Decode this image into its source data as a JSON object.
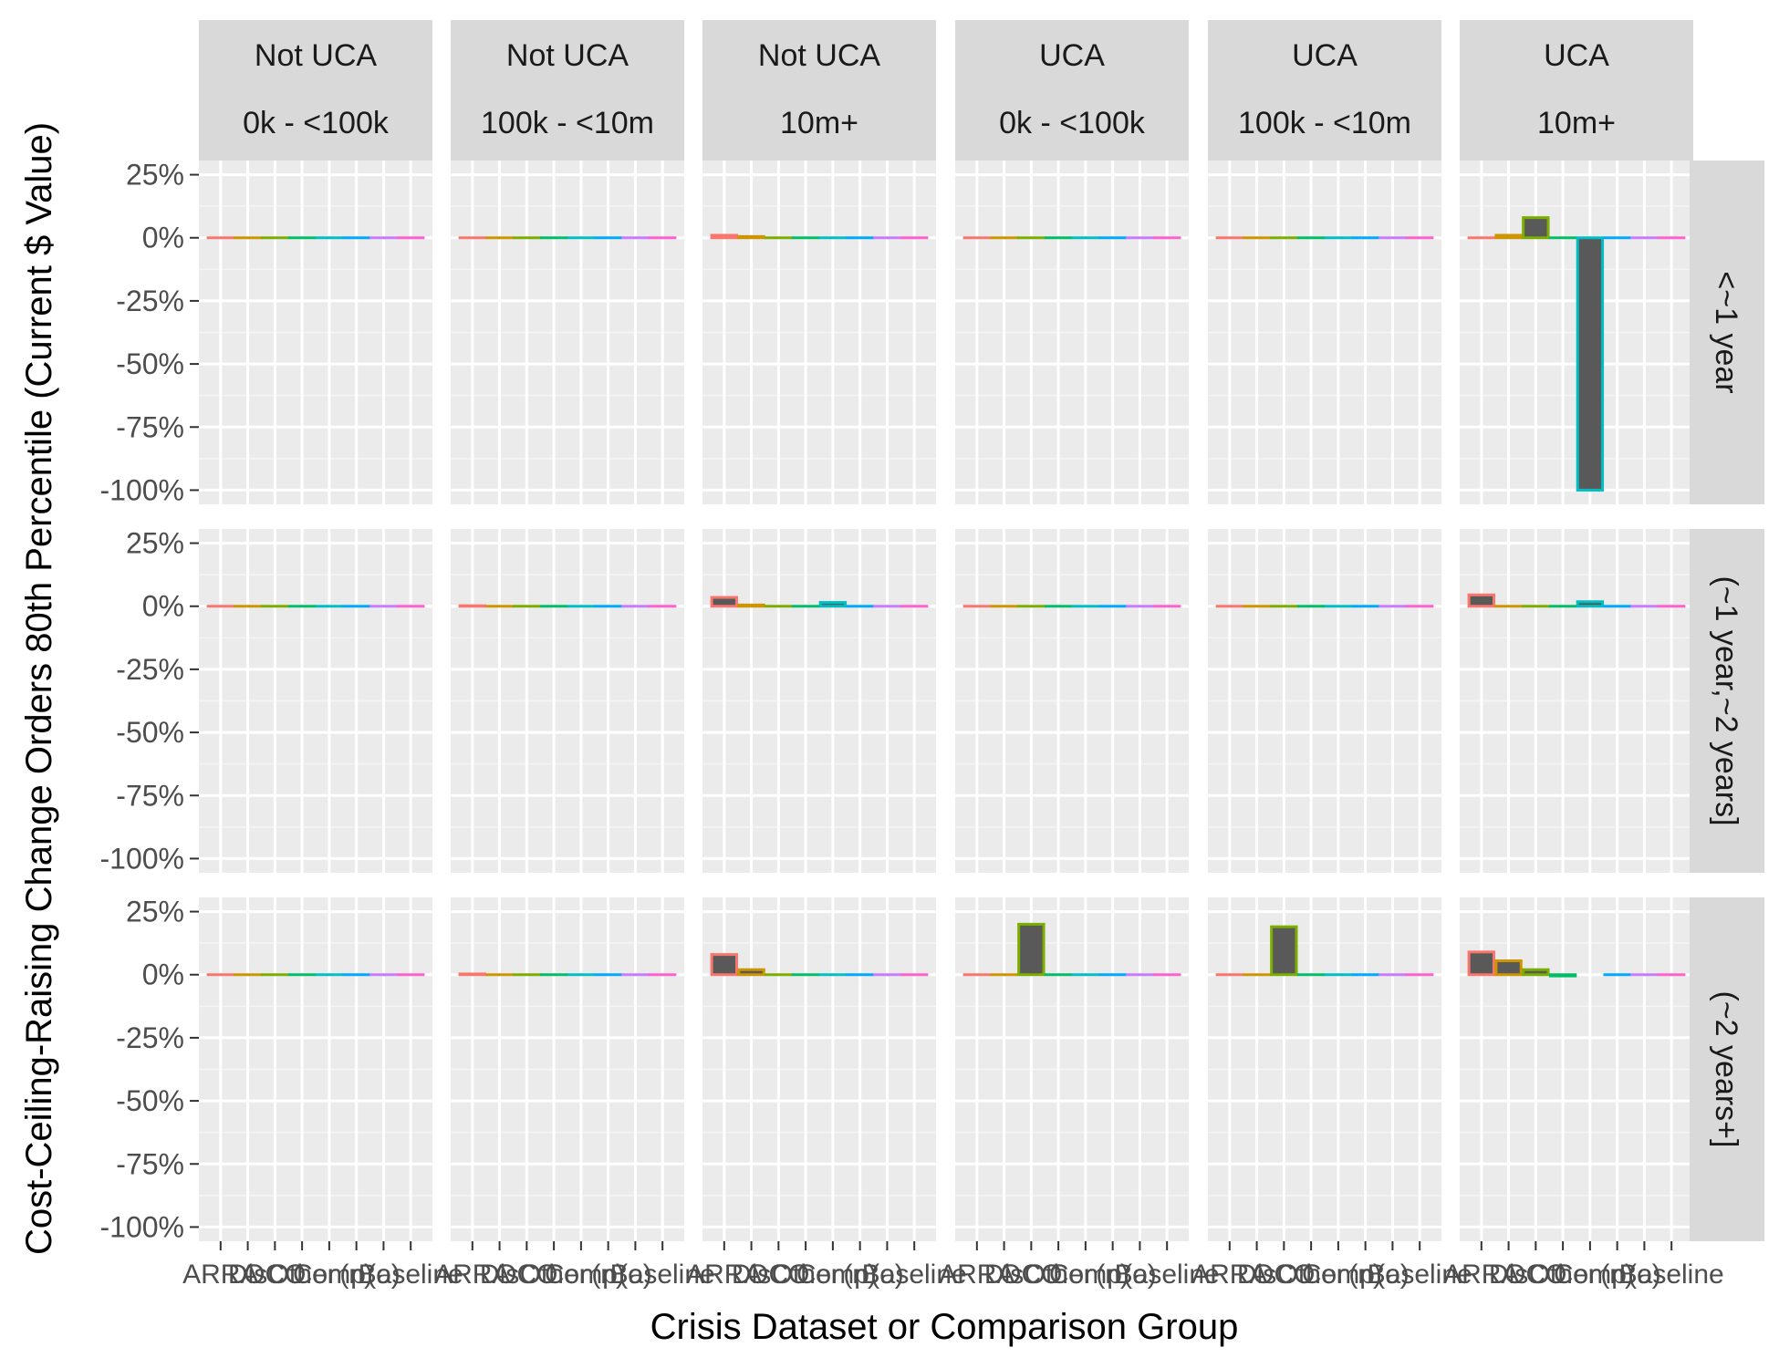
{
  "chart_data": {
    "type": "bar",
    "xlabel": "Crisis Dataset or Comparison Group",
    "ylabel": "Cost-Ceiling-Raising Change Orders 80th Percentile (Current $ Value)",
    "ylim": [
      -1.0,
      0.25
    ],
    "yticks": [
      "25%",
      "0%",
      "-25%",
      "-50%",
      "-75%",
      "-100%"
    ],
    "grid": true,
    "legend": "none",
    "column_facets": [
      {
        "line1": "Not UCA",
        "line2": "0k - <100k"
      },
      {
        "line1": "Not UCA",
        "line2": "100k - <10m"
      },
      {
        "line1": "Not UCA",
        "line2": "10m+"
      },
      {
        "line1": "UCA",
        "line2": "0k - <100k"
      },
      {
        "line1": "UCA",
        "line2": "100k - <10m"
      },
      {
        "line1": "UCA",
        "line2": "10m+"
      }
    ],
    "row_facets": [
      "<~1 year",
      "(~1 year,~2 years]",
      "(~2 years+]"
    ],
    "x_tick_labels_overlapping": [
      "ARRA",
      "Dis",
      "OCO",
      "Other",
      "Comp",
      "(n)",
      "(o)",
      "Baseline"
    ],
    "categories_count": 8,
    "category_colors": [
      "#F8766D",
      "#CD9600",
      "#7CAE00",
      "#00BE67",
      "#00BFC4",
      "#00A9FF",
      "#C77CFF",
      "#FF61CC"
    ],
    "values": [
      [
        [
          0,
          0,
          0,
          0,
          0,
          0,
          0,
          0
        ],
        [
          0,
          0,
          0,
          0,
          0,
          0,
          0,
          0
        ],
        [
          0.01,
          0.005,
          0,
          0,
          0,
          0,
          0,
          0
        ],
        [
          0,
          0,
          0,
          0,
          0,
          0,
          0,
          0
        ],
        [
          0,
          0,
          0,
          0,
          0,
          0,
          0,
          0
        ],
        [
          0,
          0.01,
          0.08,
          0,
          -1.0,
          0,
          0,
          0
        ]
      ],
      [
        [
          0,
          0,
          0,
          0,
          0,
          0,
          0,
          0
        ],
        [
          0.002,
          0,
          0,
          0,
          0,
          0,
          0,
          0
        ],
        [
          0.035,
          0.005,
          0,
          0,
          0.015,
          0,
          0,
          0
        ],
        [
          0,
          0,
          0,
          0,
          0,
          0,
          0,
          0
        ],
        [
          0,
          0,
          0,
          0,
          0,
          0,
          0,
          0
        ],
        [
          0.045,
          0,
          0,
          0,
          0.018,
          0,
          0,
          0
        ]
      ],
      [
        [
          0,
          0,
          0,
          0,
          0,
          0,
          0,
          0
        ],
        [
          0.003,
          0,
          0,
          0,
          0,
          0,
          0,
          0
        ],
        [
          0.08,
          0.02,
          0,
          0,
          0,
          0,
          0,
          0
        ],
        [
          0,
          0,
          0.2,
          0,
          0,
          0,
          0,
          0
        ],
        [
          0,
          0,
          0.19,
          0,
          0,
          0,
          0,
          0
        ],
        [
          0.09,
          0.055,
          0.02,
          -0.005,
          null,
          0,
          0,
          0
        ]
      ]
    ]
  }
}
